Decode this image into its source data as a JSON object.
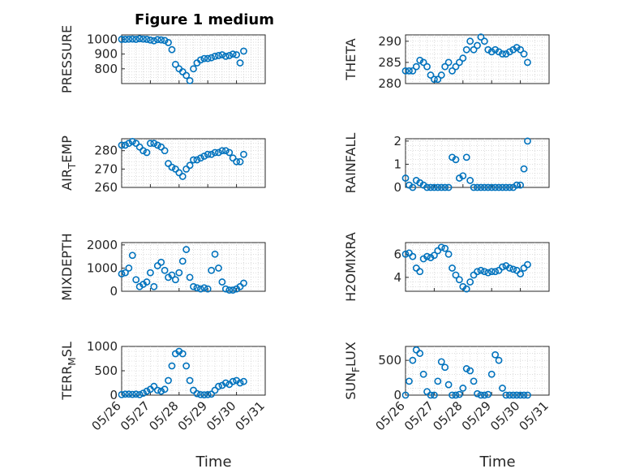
{
  "figure_title": "Figure 1 medium",
  "colors": {
    "marker": "#0072BD",
    "axis": "#262626"
  },
  "chart_data": [
    {
      "type": "scatter",
      "ylabel": "PRESSURE",
      "xlabel": "",
      "ylim": [
        700,
        1030
      ],
      "yticks": [
        800,
        900,
        1000
      ],
      "xlim": [
        "05/26",
        "05/31"
      ],
      "grid": "on",
      "x": [
        "05/26 00:00",
        "05/26 03:00",
        "05/26 06:00",
        "05/26 09:00",
        "05/26 12:00",
        "05/26 15:00",
        "05/26 18:00",
        "05/26 21:00",
        "05/27 00:00",
        "05/27 03:00",
        "05/27 06:00",
        "05/27 09:00",
        "05/27 12:00",
        "05/27 15:00",
        "05/27 18:00",
        "05/27 21:00",
        "05/28 00:00",
        "05/28 03:00",
        "05/28 06:00",
        "05/28 09:00",
        "05/28 12:00",
        "05/28 15:00",
        "05/28 18:00",
        "05/28 21:00",
        "05/29 00:00",
        "05/29 03:00",
        "05/29 06:00",
        "05/29 09:00",
        "05/29 12:00",
        "05/29 15:00",
        "05/29 18:00",
        "05/29 21:00",
        "05/30 00:00",
        "05/30 03:00",
        "05/30 06:00"
      ],
      "y": [
        1000,
        1000,
        1001,
        1002,
        1000,
        1004,
        1002,
        1000,
        995,
        990,
        998,
        996,
        992,
        978,
        930,
        830,
        800,
        780,
        755,
        720,
        800,
        840,
        860,
        870,
        870,
        875,
        885,
        890,
        895,
        885,
        890,
        900,
        895,
        840,
        920
      ]
    },
    {
      "type": "scatter",
      "ylabel": "THETA",
      "xlabel": "",
      "ylim": [
        280,
        291.5
      ],
      "yticks": [
        280,
        285,
        290
      ],
      "xlim": [
        "05/26",
        "05/31"
      ],
      "grid": "on",
      "x": [
        "05/26 00:00",
        "05/26 03:00",
        "05/26 06:00",
        "05/26 09:00",
        "05/26 12:00",
        "05/26 15:00",
        "05/26 18:00",
        "05/26 21:00",
        "05/27 00:00",
        "05/27 03:00",
        "05/27 06:00",
        "05/27 09:00",
        "05/27 12:00",
        "05/27 15:00",
        "05/27 18:00",
        "05/27 21:00",
        "05/28 00:00",
        "05/28 03:00",
        "05/28 06:00",
        "05/28 09:00",
        "05/28 12:00",
        "05/28 15:00",
        "05/28 18:00",
        "05/28 21:00",
        "05/29 00:00",
        "05/29 03:00",
        "05/29 06:00",
        "05/29 09:00",
        "05/29 12:00",
        "05/29 15:00",
        "05/29 18:00",
        "05/29 21:00",
        "05/30 00:00",
        "05/30 03:00",
        "05/30 06:00"
      ],
      "y": [
        283,
        283,
        283,
        284,
        285.5,
        285,
        284,
        282,
        281,
        281,
        282,
        284,
        285,
        283,
        284,
        285,
        286,
        288,
        290,
        288,
        289,
        291,
        290,
        288,
        287.5,
        288,
        287.5,
        287,
        287,
        287.5,
        288,
        288.5,
        288,
        287,
        285
      ]
    },
    {
      "type": "scatter",
      "ylabel": "AIR_TEMP",
      "xlabel": "",
      "ylim": [
        260,
        286.5
      ],
      "yticks": [
        260,
        270,
        280
      ],
      "xlim": [
        "05/26",
        "05/31"
      ],
      "grid": "on",
      "x": [
        "05/26 00:00",
        "05/26 03:00",
        "05/26 06:00",
        "05/26 09:00",
        "05/26 12:00",
        "05/26 15:00",
        "05/26 18:00",
        "05/26 21:00",
        "05/27 00:00",
        "05/27 03:00",
        "05/27 06:00",
        "05/27 09:00",
        "05/27 12:00",
        "05/27 15:00",
        "05/27 18:00",
        "05/27 21:00",
        "05/28 00:00",
        "05/28 03:00",
        "05/28 06:00",
        "05/28 09:00",
        "05/28 12:00",
        "05/28 15:00",
        "05/28 18:00",
        "05/28 21:00",
        "05/29 00:00",
        "05/29 03:00",
        "05/29 06:00",
        "05/29 09:00",
        "05/29 12:00",
        "05/29 15:00",
        "05/29 18:00",
        "05/29 21:00",
        "05/30 00:00",
        "05/30 03:00",
        "05/30 06:00"
      ],
      "y": [
        283,
        283,
        284,
        285,
        284,
        282,
        280,
        279,
        284,
        284,
        283,
        282,
        280,
        273,
        271,
        270,
        268,
        266,
        270,
        272,
        275,
        275,
        276,
        277,
        278,
        278,
        279,
        279,
        280,
        280,
        279,
        276,
        274,
        274,
        278
      ]
    },
    {
      "type": "scatter",
      "ylabel": "RAINFALL",
      "xlabel": "",
      "ylim": [
        0,
        2.1
      ],
      "yticks": [
        0,
        1,
        2
      ],
      "xlim": [
        "05/26",
        "05/31"
      ],
      "grid": "on",
      "x": [
        "05/26 00:00",
        "05/26 03:00",
        "05/26 06:00",
        "05/26 09:00",
        "05/26 12:00",
        "05/26 15:00",
        "05/26 18:00",
        "05/26 21:00",
        "05/27 00:00",
        "05/27 03:00",
        "05/27 06:00",
        "05/27 09:00",
        "05/27 12:00",
        "05/27 15:00",
        "05/27 18:00",
        "05/27 21:00",
        "05/28 00:00",
        "05/28 03:00",
        "05/28 06:00",
        "05/28 09:00",
        "05/28 12:00",
        "05/28 15:00",
        "05/28 18:00",
        "05/28 21:00",
        "05/29 00:00",
        "05/29 03:00",
        "05/29 06:00",
        "05/29 09:00",
        "05/29 12:00",
        "05/29 15:00",
        "05/29 18:00",
        "05/29 21:00",
        "05/30 00:00",
        "05/30 03:00",
        "05/30 06:00"
      ],
      "y": [
        0.4,
        0.1,
        0,
        0.3,
        0.2,
        0.1,
        0,
        0,
        0,
        0,
        0,
        0,
        0,
        1.3,
        1.2,
        0.4,
        0.5,
        1.3,
        0.3,
        0,
        0,
        0,
        0,
        0,
        0,
        0,
        0,
        0,
        0,
        0,
        0,
        0.1,
        0.1,
        0.8,
        2.0
      ]
    },
    {
      "type": "scatter",
      "ylabel": "MIXDEPTH",
      "xlabel": "",
      "ylim": [
        0,
        2100
      ],
      "yticks": [
        0,
        1000,
        2000
      ],
      "xlim": [
        "05/26",
        "05/31"
      ],
      "grid": "on",
      "x": [
        "05/26 00:00",
        "05/26 03:00",
        "05/26 06:00",
        "05/26 09:00",
        "05/26 12:00",
        "05/26 15:00",
        "05/26 18:00",
        "05/26 21:00",
        "05/27 00:00",
        "05/27 03:00",
        "05/27 06:00",
        "05/27 09:00",
        "05/27 12:00",
        "05/27 15:00",
        "05/27 18:00",
        "05/27 21:00",
        "05/28 00:00",
        "05/28 03:00",
        "05/28 06:00",
        "05/28 09:00",
        "05/28 12:00",
        "05/28 15:00",
        "05/28 18:00",
        "05/28 21:00",
        "05/29 00:00",
        "05/29 03:00",
        "05/29 06:00",
        "05/29 09:00",
        "05/29 12:00",
        "05/29 15:00",
        "05/29 18:00",
        "05/29 21:00",
        "05/30 00:00",
        "05/30 03:00",
        "05/30 06:00"
      ],
      "y": [
        750,
        800,
        1000,
        1550,
        500,
        200,
        300,
        400,
        800,
        200,
        1100,
        1250,
        900,
        600,
        700,
        500,
        800,
        1300,
        1800,
        600,
        200,
        150,
        100,
        150,
        100,
        900,
        1600,
        1000,
        400,
        100,
        50,
        50,
        100,
        200,
        350
      ]
    },
    {
      "type": "scatter",
      "ylabel": "H2OMIXRA",
      "xlabel": "",
      "ylim": [
        2.8,
        7.0
      ],
      "yticks": [
        4,
        6
      ],
      "xlim": [
        "05/26",
        "05/31"
      ],
      "grid": "on",
      "x": [
        "05/26 00:00",
        "05/26 03:00",
        "05/26 06:00",
        "05/26 09:00",
        "05/26 12:00",
        "05/26 15:00",
        "05/26 18:00",
        "05/26 21:00",
        "05/27 00:00",
        "05/27 03:00",
        "05/27 06:00",
        "05/27 09:00",
        "05/27 12:00",
        "05/27 15:00",
        "05/27 18:00",
        "05/27 21:00",
        "05/28 00:00",
        "05/28 03:00",
        "05/28 06:00",
        "05/28 09:00",
        "05/28 12:00",
        "05/28 15:00",
        "05/28 18:00",
        "05/28 21:00",
        "05/29 00:00",
        "05/29 03:00",
        "05/29 06:00",
        "05/29 09:00",
        "05/29 12:00",
        "05/29 15:00",
        "05/29 18:00",
        "05/29 21:00",
        "05/30 00:00",
        "05/30 03:00",
        "05/30 06:00"
      ],
      "y": [
        6.0,
        6.1,
        5.8,
        4.8,
        4.5,
        5.6,
        5.8,
        5.7,
        5.9,
        6.3,
        6.6,
        6.5,
        6.0,
        4.8,
        4.2,
        3.8,
        3.2,
        3.0,
        3.6,
        4.2,
        4.5,
        4.6,
        4.5,
        4.4,
        4.5,
        4.5,
        4.6,
        4.9,
        5.0,
        4.8,
        4.7,
        4.6,
        4.3,
        4.8,
        5.1
      ]
    },
    {
      "type": "scatter",
      "ylabel": "TERR_MSL",
      "xlabel": "Time",
      "ylim": [
        0,
        1000
      ],
      "yticks": [
        0,
        500,
        1000
      ],
      "xlim": [
        "05/26",
        "05/31"
      ],
      "grid": "on",
      "xticks": [
        "05/26",
        "05/27",
        "05/28",
        "05/29",
        "05/30",
        "05/31"
      ],
      "x": [
        "05/26 00:00",
        "05/26 03:00",
        "05/26 06:00",
        "05/26 09:00",
        "05/26 12:00",
        "05/26 15:00",
        "05/26 18:00",
        "05/26 21:00",
        "05/27 00:00",
        "05/27 03:00",
        "05/27 06:00",
        "05/27 09:00",
        "05/27 12:00",
        "05/27 15:00",
        "05/27 18:00",
        "05/27 21:00",
        "05/28 00:00",
        "05/28 03:00",
        "05/28 06:00",
        "05/28 09:00",
        "05/28 12:00",
        "05/28 15:00",
        "05/28 18:00",
        "05/28 21:00",
        "05/29 00:00",
        "05/29 03:00",
        "05/29 06:00",
        "05/29 09:00",
        "05/29 12:00",
        "05/29 15:00",
        "05/29 18:00",
        "05/29 21:00",
        "05/30 00:00",
        "05/30 03:00",
        "05/30 06:00"
      ],
      "y": [
        10,
        20,
        20,
        15,
        20,
        10,
        40,
        80,
        120,
        180,
        100,
        80,
        120,
        300,
        600,
        850,
        900,
        850,
        600,
        300,
        100,
        30,
        10,
        5,
        10,
        20,
        100,
        180,
        200,
        250,
        220,
        280,
        300,
        250,
        280
      ]
    },
    {
      "type": "scatter",
      "ylabel": "SUN_FLUX",
      "xlabel": "Time",
      "ylim": [
        0,
        700
      ],
      "yticks": [
        0,
        500
      ],
      "xlim": [
        "05/26",
        "05/31"
      ],
      "grid": "on",
      "xticks": [
        "05/26",
        "05/27",
        "05/28",
        "05/29",
        "05/30",
        "05/31"
      ],
      "x": [
        "05/26 00:00",
        "05/26 03:00",
        "05/26 06:00",
        "05/26 09:00",
        "05/26 12:00",
        "05/26 15:00",
        "05/26 18:00",
        "05/26 21:00",
        "05/27 00:00",
        "05/27 03:00",
        "05/27 06:00",
        "05/27 09:00",
        "05/27 12:00",
        "05/27 15:00",
        "05/27 18:00",
        "05/27 21:00",
        "05/28 00:00",
        "05/28 03:00",
        "05/28 06:00",
        "05/28 09:00",
        "05/28 12:00",
        "05/28 15:00",
        "05/28 18:00",
        "05/28 21:00",
        "05/29 00:00",
        "05/29 03:00",
        "05/29 06:00",
        "05/29 09:00",
        "05/29 12:00",
        "05/29 15:00",
        "05/29 18:00",
        "05/29 21:00",
        "05/30 00:00",
        "05/30 03:00",
        "05/30 06:00"
      ],
      "y": [
        0,
        200,
        500,
        650,
        600,
        300,
        50,
        0,
        0,
        200,
        480,
        400,
        150,
        0,
        0,
        10,
        100,
        380,
        350,
        200,
        20,
        0,
        0,
        10,
        300,
        580,
        500,
        100,
        0,
        0,
        0,
        0,
        0,
        0,
        0
      ]
    }
  ]
}
